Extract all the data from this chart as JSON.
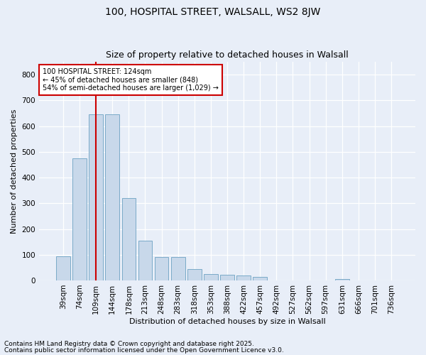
{
  "title1": "100, HOSPITAL STREET, WALSALL, WS2 8JW",
  "title2": "Size of property relative to detached houses in Walsall",
  "xlabel": "Distribution of detached houses by size in Walsall",
  "ylabel": "Number of detached properties",
  "categories": [
    "39sqm",
    "74sqm",
    "109sqm",
    "144sqm",
    "178sqm",
    "213sqm",
    "248sqm",
    "283sqm",
    "318sqm",
    "353sqm",
    "388sqm",
    "422sqm",
    "457sqm",
    "492sqm",
    "527sqm",
    "562sqm",
    "597sqm",
    "631sqm",
    "666sqm",
    "701sqm",
    "736sqm"
  ],
  "values": [
    95,
    475,
    645,
    645,
    320,
    155,
    90,
    90,
    45,
    25,
    22,
    20,
    14,
    0,
    0,
    0,
    0,
    5,
    0,
    0,
    0
  ],
  "bar_color": "#c8d8ea",
  "bar_edge_color": "#7aaac8",
  "vline_x": 2.0,
  "vline_color": "#cc0000",
  "annotation_text": "100 HOSPITAL STREET: 124sqm\n← 45% of detached houses are smaller (848)\n54% of semi-detached houses are larger (1,029) →",
  "annotation_box_color": "#ffffff",
  "annotation_box_edge": "#cc0000",
  "ylim": [
    0,
    850
  ],
  "yticks": [
    0,
    100,
    200,
    300,
    400,
    500,
    600,
    700,
    800
  ],
  "footer1": "Contains HM Land Registry data © Crown copyright and database right 2025.",
  "footer2": "Contains public sector information licensed under the Open Government Licence v3.0.",
  "bg_color": "#e8eef8",
  "plot_bg_color": "#e8eef8",
  "title_fontsize": 10,
  "subtitle_fontsize": 9,
  "ylabel_fontsize": 8,
  "xlabel_fontsize": 8,
  "tick_fontsize": 7.5,
  "footer_fontsize": 6.5
}
